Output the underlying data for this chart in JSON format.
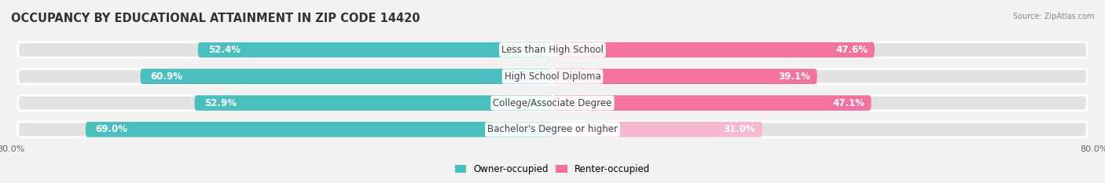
{
  "title": "OCCUPANCY BY EDUCATIONAL ATTAINMENT IN ZIP CODE 14420",
  "source": "Source: ZipAtlas.com",
  "categories": [
    "Less than High School",
    "High School Diploma",
    "College/Associate Degree",
    "Bachelor's Degree or higher"
  ],
  "owner_values": [
    52.4,
    60.9,
    52.9,
    69.0
  ],
  "renter_values": [
    47.6,
    39.1,
    47.1,
    31.0
  ],
  "owner_color": "#4BBFBF",
  "renter_colors": [
    "#F472A0",
    "#F472A0",
    "#F472A0",
    "#F5B8D0"
  ],
  "xlim_left": -80.0,
  "xlim_right": 80.0,
  "bar_height": 0.58,
  "background_color": "#f2f2f2",
  "bar_bg_color": "#e0e0e0",
  "title_fontsize": 10.5,
  "label_fontsize": 8.5,
  "tick_fontsize": 8,
  "legend_labels": [
    "Owner-occupied",
    "Renter-occupied"
  ],
  "left_axis_label": "80.0%",
  "right_axis_label": "80.0%"
}
